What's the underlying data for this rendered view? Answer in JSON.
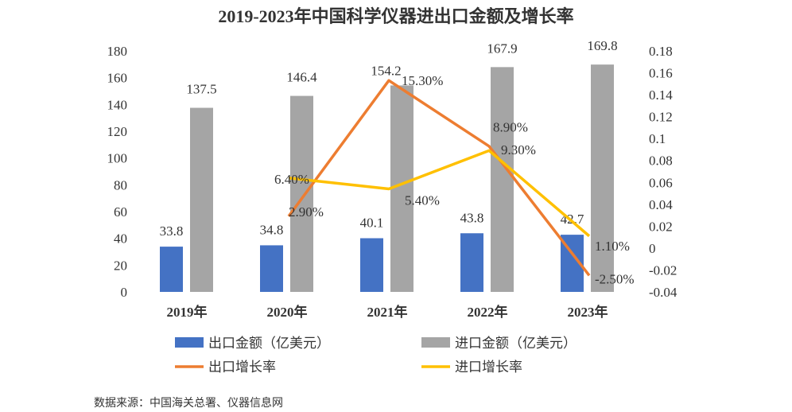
{
  "chart_data": {
    "type": "bar",
    "title": "2019-2023年中国科学仪器进出口金额及增长率",
    "categories": [
      "2019年",
      "2020年",
      "2021年",
      "2022年",
      "2023年"
    ],
    "ylim": [
      0,
      180
    ],
    "y_ticks": [
      "0",
      "20",
      "40",
      "60",
      "80",
      "100",
      "120",
      "140",
      "160",
      "180"
    ],
    "y2lim": [
      -0.04,
      0.18
    ],
    "y2_ticks": [
      "-0.04",
      "-0.02",
      "0",
      "0.02",
      "0.04",
      "0.06",
      "0.08",
      "0.1",
      "0.12",
      "0.14",
      "0.16",
      "0.18"
    ],
    "series": [
      {
        "name": "出口金额（亿美元）",
        "type": "bar",
        "color": "#4472C4",
        "values": [
          33.8,
          34.8,
          40.1,
          43.8,
          42.7
        ],
        "labels": [
          "33.8",
          "34.8",
          "40.1",
          "43.8",
          "42.7"
        ]
      },
      {
        "name": "进口金额（亿美元）",
        "type": "bar",
        "color": "#A5A5A5",
        "values": [
          137.5,
          146.4,
          154.2,
          167.9,
          169.8
        ],
        "labels": [
          "137.5",
          "146.4",
          "154.2",
          "167.9",
          "169.8"
        ]
      },
      {
        "name": "出口增长率",
        "type": "line",
        "axis": "right",
        "color": "#ED7D31",
        "values": [
          null,
          0.029,
          0.153,
          0.093,
          -0.025
        ],
        "labels": [
          "",
          "2.90%",
          "15.30%",
          "9.30%",
          "-2.50%"
        ]
      },
      {
        "name": "进口增长率",
        "type": "line",
        "axis": "right",
        "color": "#FFC000",
        "values": [
          null,
          0.064,
          0.054,
          0.089,
          0.011
        ],
        "labels": [
          "",
          "6.40%",
          "5.40%",
          "8.90%",
          "1.10%"
        ]
      }
    ],
    "legend_position": "bottom",
    "source": "数据来源：中国海关总署、仪器信息网"
  }
}
